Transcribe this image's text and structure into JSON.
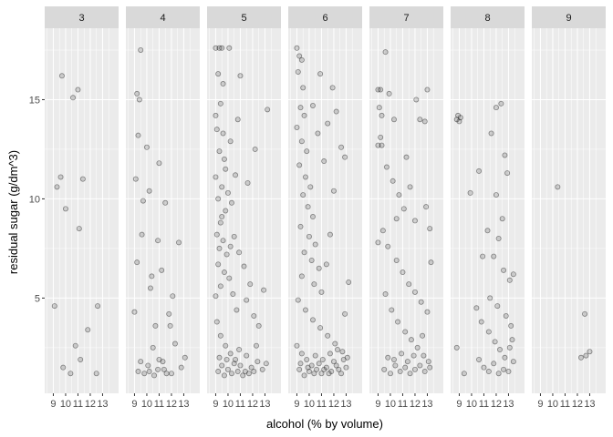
{
  "chart_data": {
    "type": "scatter",
    "facet_by": "quality",
    "facets": [
      "3",
      "4",
      "5",
      "6",
      "7",
      "8",
      "9"
    ],
    "xlabel": "alcohol (% by volume)",
    "ylabel": "residual sugar (g/dm^3)",
    "xlim": [
      8.3,
      14.3
    ],
    "ylim": [
      0.2,
      18.6
    ],
    "xticks": [
      9,
      10,
      11,
      12,
      13
    ],
    "yticks": [
      5,
      10,
      15
    ],
    "grid": true,
    "legend": "none",
    "point_alpha": 0.15,
    "series": [
      {
        "facet": "3",
        "points": [
          [
            9.3,
            10.6
          ],
          [
            9.6,
            11.1
          ],
          [
            9.7,
            16.2
          ],
          [
            10.0,
            9.5
          ],
          [
            10.6,
            15.1
          ],
          [
            11.0,
            15.5
          ],
          [
            11.1,
            8.5
          ],
          [
            11.4,
            11.0
          ],
          [
            11.8,
            3.4
          ],
          [
            9.1,
            4.6
          ],
          [
            9.8,
            1.5
          ],
          [
            10.8,
            2.6
          ],
          [
            11.2,
            1.9
          ],
          [
            12.6,
            4.6
          ],
          [
            12.5,
            1.2
          ],
          [
            10.4,
            1.2
          ]
        ]
      },
      {
        "facet": "4",
        "points": [
          [
            9.2,
            15.3
          ],
          [
            9.5,
            17.5
          ],
          [
            9.4,
            15.0
          ],
          [
            9.3,
            13.2
          ],
          [
            9.1,
            11.0
          ],
          [
            10.0,
            12.6
          ],
          [
            10.2,
            10.4
          ],
          [
            11.0,
            11.8
          ],
          [
            9.6,
            8.2
          ],
          [
            10.9,
            7.9
          ],
          [
            11.5,
            9.8
          ],
          [
            9.2,
            6.8
          ],
          [
            10.3,
            5.5
          ],
          [
            11.2,
            6.4
          ],
          [
            12.1,
            5.1
          ],
          [
            12.6,
            7.8
          ],
          [
            9.0,
            4.3
          ],
          [
            10.7,
            3.6
          ],
          [
            11.8,
            4.2
          ],
          [
            12.3,
            2.7
          ],
          [
            9.5,
            1.8
          ],
          [
            10.2,
            1.3
          ],
          [
            10.5,
            2.5
          ],
          [
            10.9,
            1.4
          ],
          [
            11.3,
            1.8
          ],
          [
            11.6,
            1.2
          ],
          [
            12.8,
            1.5
          ],
          [
            13.1,
            2.0
          ],
          [
            9.8,
            1.2
          ],
          [
            10.1,
            1.6
          ],
          [
            10.6,
            1.1
          ],
          [
            11.0,
            1.9
          ],
          [
            11.4,
            1.4
          ],
          [
            9.3,
            1.3
          ],
          [
            12.0,
            1.2
          ],
          [
            9.7,
            9.9
          ],
          [
            10.4,
            6.1
          ],
          [
            11.9,
            3.6
          ]
        ]
      },
      {
        "facet": "5",
        "points": [
          [
            9.0,
            17.6
          ],
          [
            9.3,
            17.6
          ],
          [
            9.5,
            17.6
          ],
          [
            10.1,
            17.6
          ],
          [
            9.2,
            16.3
          ],
          [
            9.6,
            15.8
          ],
          [
            9.4,
            14.8
          ],
          [
            9.1,
            13.5
          ],
          [
            9.3,
            12.4
          ],
          [
            9.7,
            12.0
          ],
          [
            9.0,
            11.1
          ],
          [
            9.5,
            10.6
          ],
          [
            9.2,
            10.0
          ],
          [
            9.8,
            9.4
          ],
          [
            9.4,
            8.8
          ],
          [
            9.1,
            8.2
          ],
          [
            9.6,
            7.9
          ],
          [
            9.3,
            7.5
          ],
          [
            9.9,
            7.2
          ],
          [
            9.2,
            6.7
          ],
          [
            9.7,
            6.3
          ],
          [
            10.1,
            6.0
          ],
          [
            9.4,
            5.6
          ],
          [
            9.0,
            5.1
          ],
          [
            10.3,
            9.8
          ],
          [
            10.6,
            11.2
          ],
          [
            10.2,
            12.9
          ],
          [
            10.8,
            14.0
          ],
          [
            11.0,
            16.2
          ],
          [
            10.5,
            8.1
          ],
          [
            10.9,
            7.3
          ],
          [
            11.3,
            6.6
          ],
          [
            10.4,
            5.2
          ],
          [
            10.7,
            4.4
          ],
          [
            11.5,
            4.9
          ],
          [
            11.8,
            5.7
          ],
          [
            12.1,
            4.1
          ],
          [
            12.5,
            3.6
          ],
          [
            12.9,
            5.4
          ],
          [
            13.2,
            14.5
          ],
          [
            11.6,
            10.8
          ],
          [
            12.2,
            12.5
          ],
          [
            9.1,
            3.8
          ],
          [
            9.4,
            3.1
          ],
          [
            9.8,
            2.6
          ],
          [
            10.2,
            2.2
          ],
          [
            10.6,
            1.9
          ],
          [
            11.0,
            1.6
          ],
          [
            11.4,
            1.3
          ],
          [
            11.9,
            1.5
          ],
          [
            12.4,
            1.8
          ],
          [
            12.8,
            1.4
          ],
          [
            13.1,
            1.7
          ],
          [
            9.2,
            1.3
          ],
          [
            9.5,
            1.6
          ],
          [
            9.7,
            1.1
          ],
          [
            10.0,
            1.4
          ],
          [
            10.3,
            1.2
          ],
          [
            10.5,
            1.7
          ],
          [
            10.8,
            1.3
          ],
          [
            11.2,
            1.1
          ],
          [
            11.7,
            1.2
          ],
          [
            12.1,
            1.3
          ],
          [
            9.3,
            2.0
          ],
          [
            9.9,
            1.9
          ],
          [
            10.9,
            2.4
          ],
          [
            11.5,
            2.1
          ],
          [
            12.3,
            2.6
          ],
          [
            9.6,
            13.3
          ],
          [
            9.0,
            14.2
          ],
          [
            9.8,
            11.5
          ],
          [
            10.0,
            10.3
          ],
          [
            9.5,
            9.1
          ],
          [
            10.2,
            7.6
          ]
        ]
      },
      {
        "facet": "6",
        "points": [
          [
            9.0,
            17.6
          ],
          [
            9.2,
            17.2
          ],
          [
            9.4,
            17.0
          ],
          [
            9.1,
            16.4
          ],
          [
            9.5,
            15.6
          ],
          [
            9.3,
            14.6
          ],
          [
            9.6,
            14.2
          ],
          [
            9.0,
            13.6
          ],
          [
            9.4,
            12.9
          ],
          [
            9.8,
            12.4
          ],
          [
            9.2,
            11.7
          ],
          [
            9.7,
            11.1
          ],
          [
            10.1,
            10.6
          ],
          [
            9.5,
            10.2
          ],
          [
            9.9,
            9.6
          ],
          [
            10.3,
            9.1
          ],
          [
            9.3,
            8.6
          ],
          [
            10.0,
            8.1
          ],
          [
            10.5,
            7.7
          ],
          [
            9.6,
            7.3
          ],
          [
            10.2,
            6.9
          ],
          [
            10.8,
            6.5
          ],
          [
            9.4,
            6.1
          ],
          [
            10.4,
            5.7
          ],
          [
            11.0,
            5.3
          ],
          [
            11.4,
            6.7
          ],
          [
            11.7,
            8.2
          ],
          [
            12.0,
            10.4
          ],
          [
            11.2,
            11.9
          ],
          [
            10.7,
            13.3
          ],
          [
            10.3,
            14.7
          ],
          [
            11.5,
            13.8
          ],
          [
            12.2,
            14.4
          ],
          [
            12.6,
            12.6
          ],
          [
            12.9,
            12.1
          ],
          [
            11.9,
            15.6
          ],
          [
            10.9,
            16.3
          ],
          [
            9.1,
            4.9
          ],
          [
            9.7,
            4.4
          ],
          [
            10.3,
            3.9
          ],
          [
            10.9,
            3.5
          ],
          [
            11.5,
            3.1
          ],
          [
            12.1,
            2.7
          ],
          [
            12.7,
            2.3
          ],
          [
            13.1,
            2.0
          ],
          [
            9.0,
            2.6
          ],
          [
            9.4,
            2.2
          ],
          [
            9.8,
            1.9
          ],
          [
            10.2,
            1.6
          ],
          [
            10.6,
            1.4
          ],
          [
            11.0,
            1.2
          ],
          [
            11.4,
            1.5
          ],
          [
            11.8,
            1.3
          ],
          [
            12.2,
            1.6
          ],
          [
            12.6,
            1.2
          ],
          [
            13.0,
            1.5
          ],
          [
            9.2,
            1.4
          ],
          [
            9.6,
            1.1
          ],
          [
            10.0,
            1.3
          ],
          [
            10.4,
            1.2
          ],
          [
            10.8,
            1.7
          ],
          [
            11.2,
            1.4
          ],
          [
            11.6,
            1.2
          ],
          [
            12.0,
            1.8
          ],
          [
            12.4,
            1.4
          ],
          [
            12.8,
            1.9
          ],
          [
            9.3,
            1.7
          ],
          [
            9.9,
            1.5
          ],
          [
            10.5,
            2.1
          ],
          [
            11.1,
            1.9
          ],
          [
            11.7,
            2.2
          ],
          [
            12.3,
            2.4
          ],
          [
            12.9,
            4.2
          ],
          [
            13.2,
            5.8
          ]
        ]
      },
      {
        "facet": "7",
        "points": [
          [
            9.0,
            15.5
          ],
          [
            9.2,
            15.5
          ],
          [
            9.6,
            17.4
          ],
          [
            9.1,
            14.6
          ],
          [
            9.3,
            14.2
          ],
          [
            9.2,
            13.1
          ],
          [
            9.0,
            12.7
          ],
          [
            9.3,
            12.7
          ],
          [
            9.9,
            15.3
          ],
          [
            10.3,
            14.0
          ],
          [
            9.7,
            11.6
          ],
          [
            10.2,
            10.9
          ],
          [
            10.7,
            10.2
          ],
          [
            11.1,
            9.5
          ],
          [
            11.6,
            10.6
          ],
          [
            12.0,
            8.9
          ],
          [
            12.4,
            14.0
          ],
          [
            12.8,
            13.9
          ],
          [
            12.1,
            15.0
          ],
          [
            13.0,
            15.5
          ],
          [
            9.4,
            8.4
          ],
          [
            9.8,
            7.6
          ],
          [
            10.5,
            6.9
          ],
          [
            11.0,
            6.3
          ],
          [
            11.5,
            5.7
          ],
          [
            12.0,
            5.3
          ],
          [
            12.5,
            4.8
          ],
          [
            13.0,
            4.3
          ],
          [
            13.3,
            6.8
          ],
          [
            9.0,
            7.8
          ],
          [
            9.6,
            5.2
          ],
          [
            10.1,
            4.4
          ],
          [
            10.6,
            3.8
          ],
          [
            11.2,
            3.3
          ],
          [
            11.7,
            2.9
          ],
          [
            12.2,
            2.5
          ],
          [
            12.7,
            2.1
          ],
          [
            13.1,
            1.8
          ],
          [
            9.5,
            1.4
          ],
          [
            10.0,
            1.2
          ],
          [
            10.4,
            1.6
          ],
          [
            10.8,
            1.3
          ],
          [
            11.2,
            1.5
          ],
          [
            11.6,
            1.2
          ],
          [
            12.0,
            1.4
          ],
          [
            12.4,
            1.6
          ],
          [
            12.8,
            1.3
          ],
          [
            13.2,
            1.5
          ],
          [
            9.8,
            2.0
          ],
          [
            10.3,
            1.9
          ],
          [
            10.9,
            2.2
          ],
          [
            11.4,
            1.8
          ],
          [
            11.9,
            2.1
          ],
          [
            12.6,
            3.1
          ],
          [
            13.2,
            8.5
          ],
          [
            12.9,
            9.6
          ],
          [
            11.3,
            12.1
          ],
          [
            10.5,
            9.0
          ]
        ]
      },
      {
        "facet": "8",
        "points": [
          [
            8.9,
            14.2
          ],
          [
            9.0,
            13.9
          ],
          [
            8.8,
            14.0
          ],
          [
            9.1,
            14.1
          ],
          [
            9.9,
            10.3
          ],
          [
            10.6,
            11.4
          ],
          [
            10.9,
            7.1
          ],
          [
            11.3,
            8.4
          ],
          [
            11.6,
            13.3
          ],
          [
            12.0,
            14.6
          ],
          [
            12.4,
            14.8
          ],
          [
            12.7,
            12.2
          ],
          [
            12.9,
            11.3
          ],
          [
            12.5,
            9.0
          ],
          [
            12.2,
            8.0
          ],
          [
            11.8,
            7.1
          ],
          [
            12.6,
            6.4
          ],
          [
            13.1,
            5.9
          ],
          [
            13.4,
            6.2
          ],
          [
            11.5,
            5.0
          ],
          [
            12.1,
            4.6
          ],
          [
            12.8,
            4.1
          ],
          [
            13.2,
            3.6
          ],
          [
            10.4,
            4.5
          ],
          [
            10.8,
            3.8
          ],
          [
            11.4,
            3.3
          ],
          [
            11.9,
            2.8
          ],
          [
            12.3,
            2.4
          ],
          [
            12.7,
            2.0
          ],
          [
            13.1,
            2.5
          ],
          [
            13.4,
            1.8
          ],
          [
            10.6,
            1.9
          ],
          [
            11.0,
            1.5
          ],
          [
            11.4,
            1.3
          ],
          [
            11.8,
            1.7
          ],
          [
            12.2,
            1.2
          ],
          [
            12.6,
            1.4
          ],
          [
            13.0,
            1.3
          ],
          [
            9.4,
            1.2
          ],
          [
            8.8,
            2.5
          ],
          [
            13.3,
            2.9
          ],
          [
            12.0,
            10.2
          ]
        ]
      },
      {
        "facet": "9",
        "points": [
          [
            10.4,
            10.6
          ],
          [
            12.6,
            4.2
          ],
          [
            12.3,
            2.0
          ],
          [
            13.0,
            2.3
          ],
          [
            12.7,
            2.1
          ]
        ]
      }
    ]
  }
}
